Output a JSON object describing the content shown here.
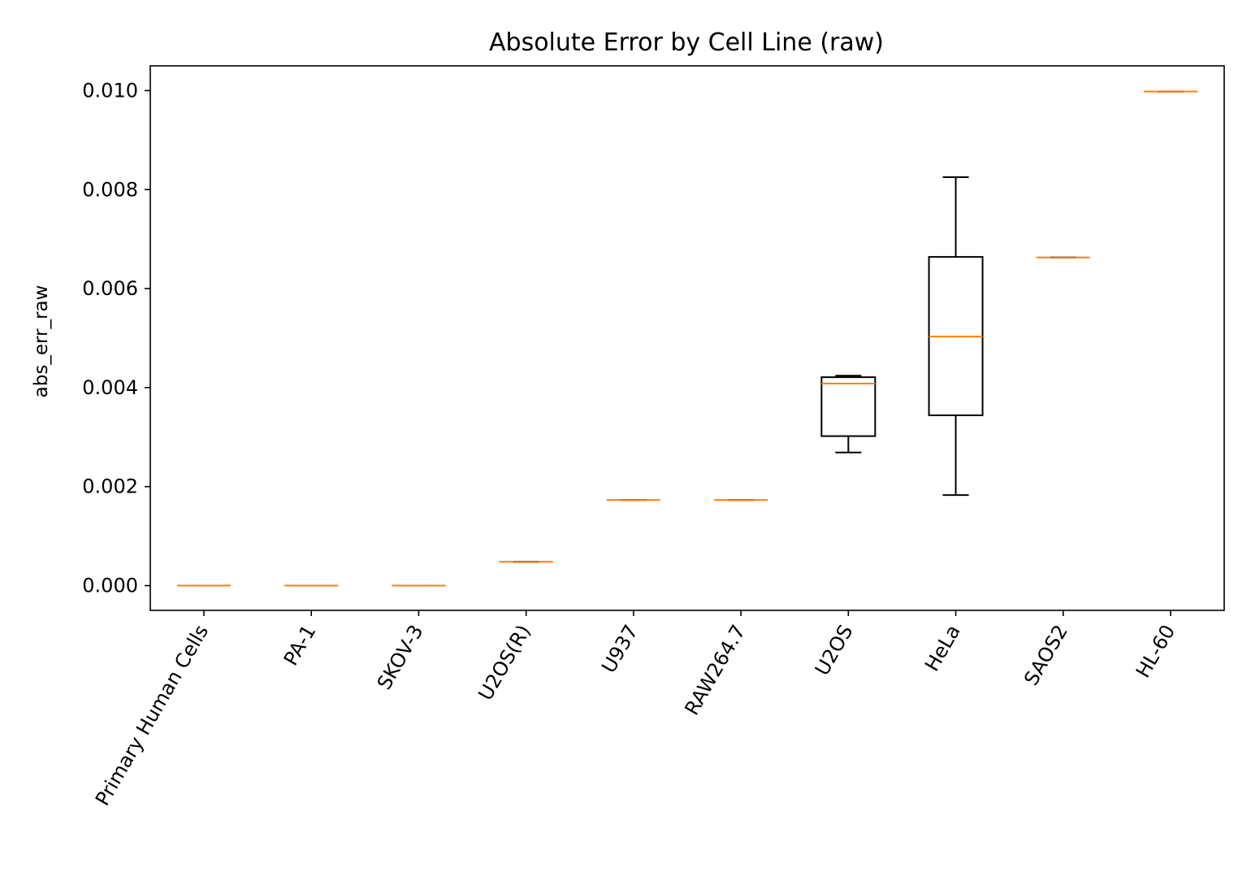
{
  "chart_data": {
    "type": "box",
    "title": "Absolute Error by Cell Line (raw)",
    "xlabel": "",
    "ylabel": "abs_err_raw",
    "ylim": [
      -0.0005,
      0.0105
    ],
    "yticks": [
      0.0,
      0.002,
      0.004,
      0.006,
      0.008,
      0.01
    ],
    "ytick_labels": [
      "0.000",
      "0.002",
      "0.004",
      "0.006",
      "0.008",
      "0.010"
    ],
    "categories": [
      "Primary Human Cells",
      "PA-1",
      "SKOV-3",
      "U2OS(R)",
      "U937",
      "RAW264.7",
      "U2OS",
      "HeLa",
      "SAOS2",
      "HL-60"
    ],
    "boxes": [
      {
        "category": "Primary Human Cells",
        "whisker_low": 0.0,
        "q1": 0.0,
        "median": 0.0,
        "q3": 0.0,
        "whisker_high": 0.0
      },
      {
        "category": "PA-1",
        "whisker_low": 0.0,
        "q1": 0.0,
        "median": 0.0,
        "q3": 0.0,
        "whisker_high": 0.0
      },
      {
        "category": "SKOV-3",
        "whisker_low": 0.0,
        "q1": 0.0,
        "median": 0.0,
        "q3": 0.0,
        "whisker_high": 0.0
      },
      {
        "category": "U2OS(R)",
        "whisker_low": 0.00048,
        "q1": 0.00048,
        "median": 0.00048,
        "q3": 0.00048,
        "whisker_high": 0.00048
      },
      {
        "category": "U937",
        "whisker_low": 0.00173,
        "q1": 0.00173,
        "median": 0.00173,
        "q3": 0.00173,
        "whisker_high": 0.00173
      },
      {
        "category": "RAW264.7",
        "whisker_low": 0.00173,
        "q1": 0.00173,
        "median": 0.00173,
        "q3": 0.00173,
        "whisker_high": 0.00173
      },
      {
        "category": "U2OS",
        "whisker_low": 0.00269,
        "q1": 0.00302,
        "median": 0.00408,
        "q3": 0.00421,
        "whisker_high": 0.00424
      },
      {
        "category": "HeLa",
        "whisker_low": 0.00183,
        "q1": 0.00344,
        "median": 0.00503,
        "q3": 0.00664,
        "whisker_high": 0.00825
      },
      {
        "category": "SAOS2",
        "whisker_low": 0.00663,
        "q1": 0.00663,
        "median": 0.00663,
        "q3": 0.00663,
        "whisker_high": 0.00663
      },
      {
        "category": "HL-60",
        "whisker_low": 0.00998,
        "q1": 0.00998,
        "median": 0.00998,
        "q3": 0.00998,
        "whisker_high": 0.00998
      }
    ],
    "colors": {
      "box": "#000000",
      "median": "#ff7f0e",
      "whisker": "#000000"
    },
    "grid": false,
    "legend": "none"
  }
}
